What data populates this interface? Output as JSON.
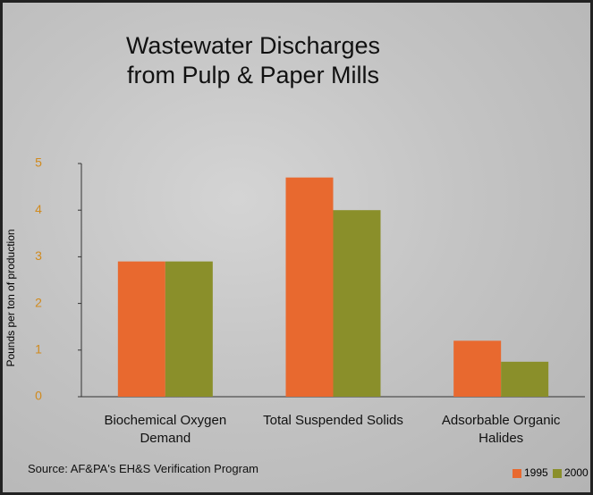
{
  "chart_data": {
    "type": "bar",
    "title": "Wastewater Discharges from Pulp & Paper Mills",
    "y_label": "Pounds per ton of production",
    "source": "Source: AF&PA's EH&S Verification Program",
    "categories": [
      "Biochemical Oxygen Demand",
      "Total Suspended Solids",
      "Adsorbable Organic Halides"
    ],
    "series": [
      {
        "name": "1995",
        "color": "#e8692f",
        "values": [
          2.9,
          4.7,
          1.2
        ]
      },
      {
        "name": "2000",
        "color": "#8a8f2a",
        "values": [
          2.9,
          4.0,
          0.75
        ]
      }
    ],
    "ylim": [
      0,
      5
    ],
    "yticks": [
      0,
      1,
      2,
      3,
      4,
      5
    ],
    "tick_color": "#d08a1e",
    "legend": "bottom-right"
  }
}
